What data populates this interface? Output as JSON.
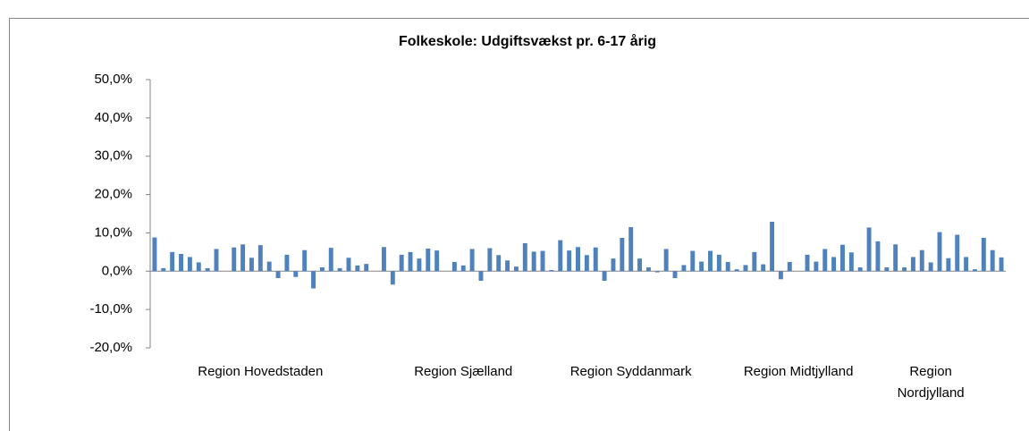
{
  "chart_data": {
    "type": "bar",
    "title": "Folkeskole: Udgiftsvækst pr. 6-17 årig",
    "categories": [
      null,
      null,
      null,
      null,
      null,
      null,
      null,
      null,
      null,
      null,
      null,
      null,
      "Region Hovedstaden",
      null,
      null,
      null,
      null,
      null,
      null,
      null,
      null,
      null,
      null,
      null,
      null,
      null,
      null,
      null,
      null,
      null,
      null,
      null,
      null,
      null,
      null,
      "Region Sjælland",
      null,
      null,
      null,
      null,
      null,
      null,
      null,
      null,
      null,
      null,
      null,
      null,
      null,
      null,
      null,
      null,
      null,
      null,
      "Region Syddanmark",
      null,
      null,
      null,
      null,
      null,
      null,
      null,
      null,
      null,
      null,
      null,
      null,
      null,
      null,
      null,
      null,
      null,
      null,
      "Region Midtjylland",
      null,
      null,
      null,
      null,
      null,
      null,
      null,
      null,
      null,
      null,
      null,
      null,
      null,
      null,
      "Region Nordjylland",
      null,
      null,
      null,
      null,
      null,
      null,
      null,
      null
    ],
    "values": [
      8.8,
      0.8,
      5.0,
      4.5,
      3.7,
      2.3,
      0.8,
      5.8,
      0,
      6.2,
      7.0,
      3.5,
      6.8,
      2.5,
      -1.8,
      4.3,
      -1.5,
      5.5,
      -4.5,
      1.0,
      6.1,
      0.8,
      3.5,
      1.5,
      1.9,
      0,
      6.3,
      -3.5,
      4.3,
      5.0,
      3.3,
      5.9,
      5.4,
      0,
      2.4,
      1.5,
      5.8,
      -2.5,
      6.0,
      4.2,
      2.8,
      1.2,
      7.3,
      5.1,
      5.3,
      0.3,
      8.1,
      5.4,
      6.3,
      4.2,
      6.2,
      -2.5,
      3.3,
      8.7,
      11.5,
      3.3,
      1.0,
      -0.3,
      5.8,
      -1.8,
      1.6,
      5.3,
      2.5,
      5.3,
      4.3,
      2.4,
      0.5,
      1.6,
      5.0,
      1.8,
      12.9,
      -2.1,
      2.4,
      0,
      4.3,
      2.5,
      5.8,
      3.7,
      6.9,
      4.9,
      1.0,
      11.4,
      7.8,
      1.0,
      7.0,
      1.0,
      3.7,
      5.5,
      2.3,
      10.2,
      3.4,
      9.5,
      3.7,
      0.5,
      8.7,
      5.5,
      3.6
    ],
    "color": "#4f81bd",
    "ylim": [
      -20,
      50
    ],
    "yticks": [
      {
        "value": -20,
        "label": "-20,0%"
      },
      {
        "value": -10,
        "label": "-10,0%"
      },
      {
        "value": 0,
        "label": "0,0%"
      },
      {
        "value": 10,
        "label": "10,0%"
      },
      {
        "value": 20,
        "label": "20,0%"
      },
      {
        "value": 30,
        "label": "30,0%"
      },
      {
        "value": 40,
        "label": "40,0%"
      },
      {
        "value": 50,
        "label": "50,0%"
      }
    ],
    "grid": false
  }
}
